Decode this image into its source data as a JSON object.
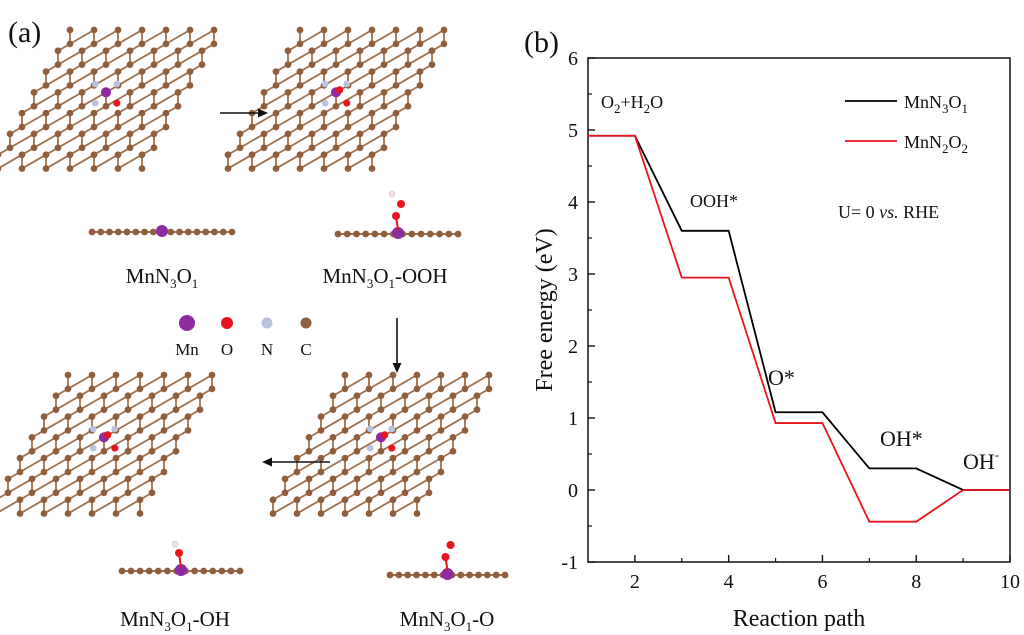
{
  "panel_a": {
    "label": "(a)",
    "structures": [
      {
        "base": "MnN",
        "n": "3",
        "o": "O",
        "m": "1",
        "suffix": ""
      },
      {
        "base": "MnN",
        "n": "3",
        "o": "O",
        "m": "1",
        "suffix": "-OOH"
      },
      {
        "base": "MnN",
        "n": "3",
        "o": "O",
        "m": "1",
        "suffix": "-O"
      },
      {
        "base": "MnN",
        "n": "3",
        "o": "O",
        "m": "1",
        "suffix": "-OH"
      }
    ],
    "legend": [
      {
        "symbol": "Mn",
        "color": "#8e2ba0"
      },
      {
        "symbol": "O",
        "color": "#e8141e"
      },
      {
        "symbol": "N",
        "color": "#b9c3de"
      },
      {
        "symbol": "C",
        "color": "#8f5e3c"
      }
    ],
    "colors": {
      "carbon": "#8f5e3c",
      "bond": "#a0714d",
      "hydrogen": "#f2dede"
    }
  },
  "panel_b": {
    "label": "(b)",
    "chart_data": {
      "type": "line",
      "xlabel": "Reaction path",
      "ylabel": "Free energy (eV)",
      "xlim": [
        1,
        10
      ],
      "ylim": [
        -1,
        6
      ],
      "xticks": [
        2,
        4,
        6,
        8,
        10
      ],
      "yticks": [
        -1,
        0,
        1,
        2,
        3,
        4,
        5,
        6
      ],
      "grid": false,
      "legend_position": "top-right",
      "series": [
        {
          "name_base": "MnN",
          "name_n": "3",
          "name_o": "O",
          "name_m": "1",
          "color": "#000000",
          "x": [
            1,
            2,
            3,
            4,
            5,
            6,
            7,
            8,
            9,
            10
          ],
          "y": [
            4.92,
            4.92,
            3.6,
            3.6,
            1.08,
            1.08,
            0.3,
            0.3,
            0,
            0
          ]
        },
        {
          "name_base": "MnN",
          "name_n": "2",
          "name_o": "O",
          "name_m": "2",
          "color": "#e8141e",
          "x": [
            1,
            2,
            3,
            4,
            5,
            6,
            7,
            8,
            9,
            10
          ],
          "y": [
            4.92,
            4.92,
            2.95,
            2.95,
            0.93,
            0.93,
            -0.44,
            -0.44,
            0,
            0
          ]
        }
      ],
      "annotations": {
        "start": {
          "a": "O",
          "a_sub": "2",
          "b": "+H",
          "b_sub": "2",
          "c": "O"
        },
        "ooh": "OOH*",
        "o": "O*",
        "oh": "OH*",
        "ohm": {
          "base": "OH",
          "sup": "-"
        },
        "potential": {
          "pre": "U= 0 ",
          "vs": "vs.",
          "post": " RHE"
        }
      }
    }
  }
}
